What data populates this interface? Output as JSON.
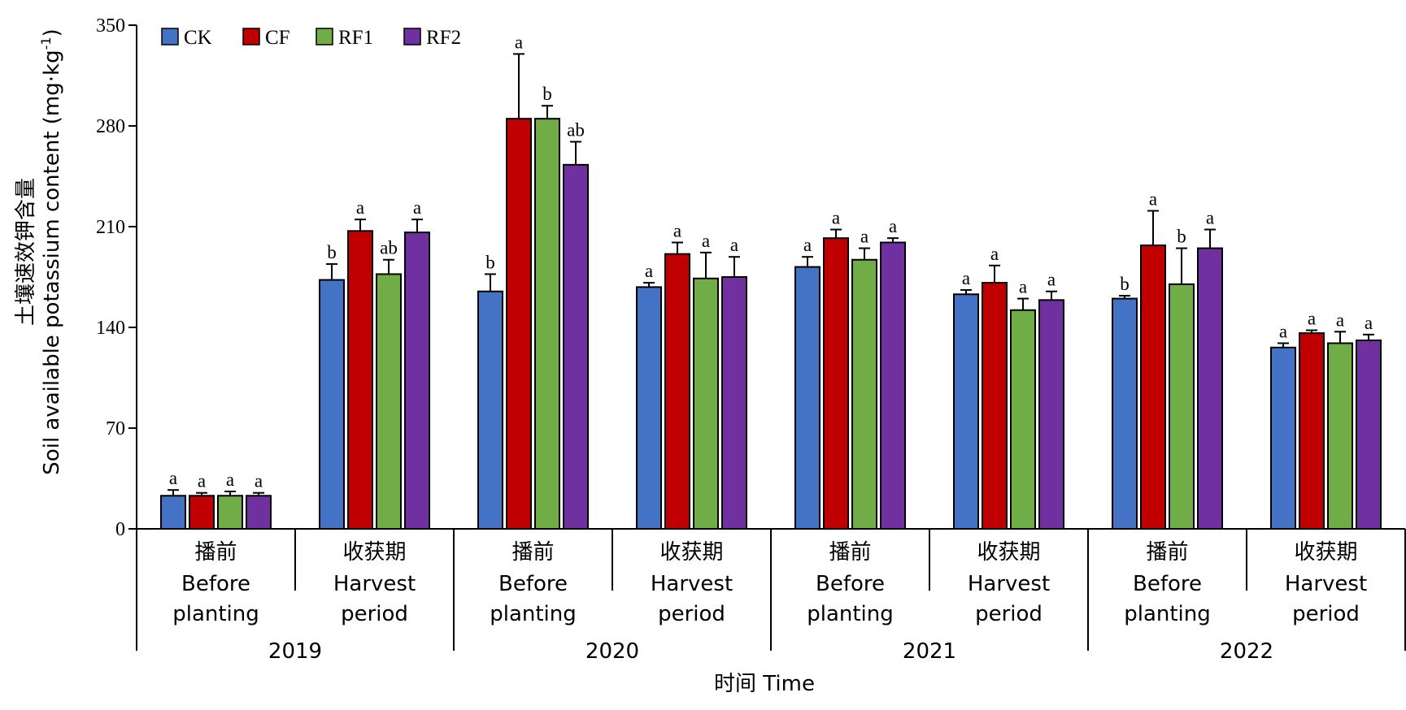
{
  "chart_data": {
    "type": "bar",
    "title": "",
    "xlabel": "时间 Time",
    "ylabel_cn": "土壤速效钾含量",
    "ylabel_en": "Soil available potassium content (mg·kg",
    "ylabel_sup": "-1",
    "ylabel_end": ")",
    "ylim": [
      0,
      350
    ],
    "yticks": [
      "0",
      "70",
      "140",
      "210",
      "280",
      "350"
    ],
    "grid": false,
    "legend_position": "top-left",
    "groups": [
      {
        "cn": "播前",
        "en1": "Before",
        "en2": "planting"
      },
      {
        "cn": "收获期",
        "en1": "Harvest",
        "en2": "period"
      },
      {
        "cn": "播前",
        "en1": "Before",
        "en2": "planting"
      },
      {
        "cn": "收获期",
        "en1": "Harvest",
        "en2": "period"
      },
      {
        "cn": "播前",
        "en1": "Before",
        "en2": "planting"
      },
      {
        "cn": "收获期",
        "en1": "Harvest",
        "en2": "period"
      },
      {
        "cn": "播前",
        "en1": "Before",
        "en2": "planting"
      },
      {
        "cn": "收获期",
        "en1": "Harvest",
        "en2": "period"
      }
    ],
    "years": [
      "2019",
      "2020",
      "2021",
      "2022"
    ],
    "series": [
      {
        "name": "CK",
        "color": "#4472C4",
        "values": [
          23,
          173,
          165,
          168,
          182,
          163,
          160,
          126
        ],
        "errors": [
          4,
          11,
          12,
          3,
          7,
          3,
          2,
          3
        ],
        "letters": [
          "a",
          "b",
          "b",
          "a",
          "a",
          "a",
          "b",
          "a"
        ]
      },
      {
        "name": "CF",
        "color": "#C00000",
        "values": [
          23,
          207,
          285,
          191,
          202,
          171,
          197,
          136
        ],
        "errors": [
          2,
          8,
          45,
          8,
          6,
          12,
          24,
          2
        ],
        "letters": [
          "a",
          "a",
          "a",
          "a",
          "a",
          "a",
          "a",
          "a"
        ]
      },
      {
        "name": "RF1",
        "color": "#70AD47",
        "values": [
          23,
          177,
          285,
          174,
          187,
          152,
          170,
          129
        ],
        "errors": [
          3,
          10,
          9,
          18,
          8,
          8,
          25,
          8
        ],
        "letters": [
          "a",
          "ab",
          "b",
          "a",
          "a",
          "a",
          "b",
          "a"
        ]
      },
      {
        "name": "RF2",
        "color": "#7030A0",
        "values": [
          23,
          206,
          253,
          175,
          199,
          159,
          195,
          131
        ],
        "errors": [
          2,
          9,
          16,
          14,
          3,
          6,
          13,
          4
        ],
        "letters": [
          "a",
          "a",
          "ab",
          "a",
          "a",
          "a",
          "a",
          "a"
        ]
      }
    ]
  }
}
